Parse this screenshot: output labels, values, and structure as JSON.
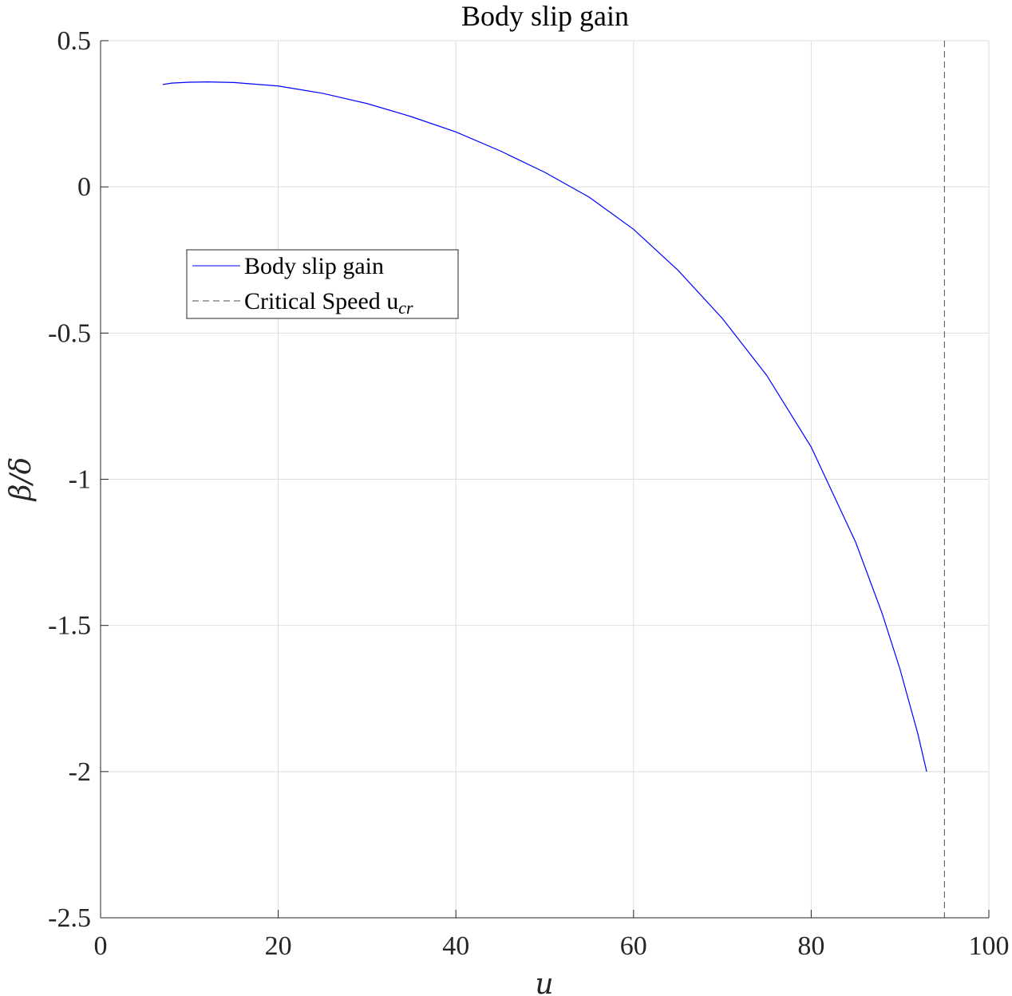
{
  "chart_data": {
    "type": "line",
    "title": "Body slip gain",
    "xlabel": "u",
    "ylabel": "β/δ",
    "xlim": [
      0,
      100
    ],
    "ylim": [
      -2.5,
      0.5
    ],
    "xticks": [
      0,
      20,
      40,
      60,
      80,
      100
    ],
    "yticks": [
      0.5,
      0,
      -0.5,
      -1,
      -1.5,
      -2,
      -2.5
    ],
    "xtick_labels": [
      "0",
      "20",
      "40",
      "60",
      "80",
      "100"
    ],
    "ytick_labels": [
      "0.5",
      "0",
      "-0.5",
      "-1",
      "-1.5",
      "-2",
      "-2.5"
    ],
    "grid": true,
    "legend_position": "upper-left",
    "series": [
      {
        "name": "Body slip gain",
        "color": "#0000ff",
        "style": "solid",
        "x": [
          7,
          8,
          10,
          12,
          15,
          20,
          25,
          30,
          35,
          40,
          45,
          50,
          55,
          60,
          65,
          70,
          75,
          80,
          85,
          88,
          90,
          92,
          93
        ],
        "y": [
          0.35,
          0.355,
          0.358,
          0.359,
          0.357,
          0.345,
          0.32,
          0.285,
          0.24,
          0.188,
          0.123,
          0.05,
          -0.035,
          -0.145,
          -0.285,
          -0.45,
          -0.645,
          -0.89,
          -1.215,
          -1.46,
          -1.65,
          -1.87,
          -2.0
        ]
      },
      {
        "name": "Critical Speed u_cr",
        "color": "#4d4d4d",
        "style": "dashed",
        "vertical_x": 95
      }
    ],
    "legend": {
      "entries": [
        {
          "label": "Body slip gain",
          "sub": ""
        },
        {
          "label": "Critical Speed u",
          "sub": "cr"
        }
      ]
    }
  }
}
